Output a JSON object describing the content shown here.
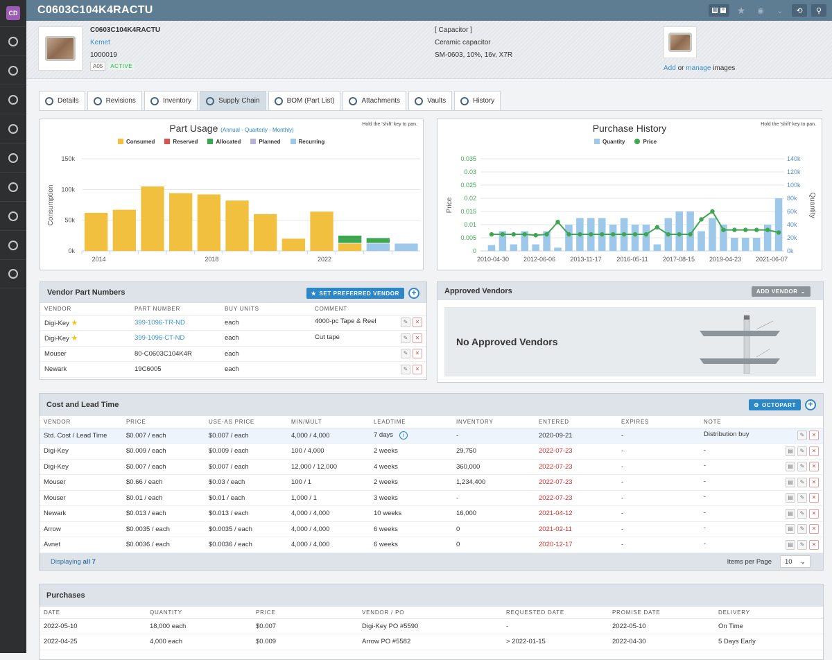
{
  "app": {
    "avatar": "CD",
    "title": "C0603C104K4RACTU"
  },
  "part": {
    "number": "C0603C104K4RACTU",
    "manufacturer": "Kemet",
    "id": "1000019",
    "rev": "A05",
    "status": "ACTIVE",
    "category": "[ Capacitor ]",
    "description": "Ceramic capacitor",
    "specs": "SM-0603, 10%, 16v, X7R",
    "images": {
      "add": "Add",
      "or": "or",
      "manage": "manage",
      "suffix": "images"
    }
  },
  "tabs": [
    {
      "label": "Details",
      "icon": "dashboard-icon"
    },
    {
      "label": "Revisions",
      "icon": "revisions-icon"
    },
    {
      "label": "Inventory",
      "icon": "inventory-icon"
    },
    {
      "label": "Supply Chain",
      "icon": "supply-chain-icon"
    },
    {
      "label": "BOM (Part List)",
      "icon": "bom-icon"
    },
    {
      "label": "Attachments",
      "icon": "paperclip-icon"
    },
    {
      "label": "Vaults",
      "icon": "shield-icon"
    },
    {
      "label": "History",
      "icon": "clock-icon"
    }
  ],
  "usage_chart": {
    "hint": "Hold the 'shift' key to pan.",
    "subtitle": "(Annual - Quarterly - Monthly)"
  },
  "purchase_chart": {
    "hint": "Hold the 'shift' key to pan."
  },
  "chart_data": [
    {
      "type": "bar",
      "title": "Part Usage",
      "ylabel": "Consumption",
      "ylim": [
        0,
        150000
      ],
      "yticks": [
        "0k",
        "50k",
        "100k",
        "150k"
      ],
      "xticks": [
        "2014",
        "2018",
        "2022"
      ],
      "legend": [
        {
          "name": "Consumed",
          "color": "#f0c03e"
        },
        {
          "name": "Reserved",
          "color": "#d9534f"
        },
        {
          "name": "Allocated",
          "color": "#3da650"
        },
        {
          "name": "Planned",
          "color": "#b8b3d8"
        },
        {
          "name": "Recurring",
          "color": "#9ec8ea"
        }
      ],
      "bars": [
        {
          "consumed": 62000
        },
        {
          "consumed": 67000
        },
        {
          "consumed": 105000
        },
        {
          "consumed": 94000
        },
        {
          "consumed": 92000
        },
        {
          "consumed": 82000
        },
        {
          "consumed": 60000
        },
        {
          "consumed": 20000
        },
        {
          "consumed": 64000
        },
        {
          "consumed": 12000,
          "allocated": 13000
        },
        {
          "allocated": 9000,
          "recurring": 12000
        },
        {
          "recurring": 12000
        }
      ]
    },
    {
      "type": "bar+line",
      "title": "Purchase History",
      "ylabel_left": "Price",
      "ylabel_right": "Quantity",
      "ylim_left": [
        0,
        0.035
      ],
      "ylim_right": [
        0,
        140000
      ],
      "yticks_left": [
        "0",
        "0.005",
        "0.01",
        "0.015",
        "0.02",
        "0.025",
        "0.03",
        "0.035"
      ],
      "yticks_right": [
        "0k",
        "20k",
        "40k",
        "60k",
        "80k",
        "100k",
        "120k",
        "140k"
      ],
      "xticks": [
        "2010-04-30",
        "2012-06-06",
        "2013-11-17",
        "2016-05-11",
        "2017-08-15",
        "2019-04-23",
        "2021-06-07"
      ],
      "legend": [
        {
          "name": "Quantity",
          "color": "#9ec8ea"
        },
        {
          "name": "Price",
          "color": "#3da650"
        }
      ],
      "quantity": [
        9000,
        30000,
        10000,
        30000,
        10000,
        30000,
        5000,
        40000,
        50000,
        50000,
        50000,
        40000,
        50000,
        40000,
        40000,
        10000,
        50000,
        60000,
        60000,
        30000,
        50000,
        40000,
        20000,
        20000,
        20000,
        40000,
        80000
      ],
      "price": [
        0.0063,
        0.0063,
        0.0063,
        0.0063,
        0.006,
        0.0063,
        0.011,
        0.0063,
        0.0063,
        0.0063,
        0.0063,
        0.0063,
        0.0063,
        0.0063,
        0.0063,
        0.009,
        0.0063,
        0.0063,
        0.0063,
        0.012,
        0.015,
        0.008,
        0.008,
        0.008,
        0.008,
        0.008,
        0.007
      ]
    }
  ],
  "vendor_parts": {
    "title": "Vendor Part Numbers",
    "button": "SET PREFERRED VENDOR",
    "columns": [
      "VENDOR",
      "PART NUMBER",
      "BUY UNITS",
      "COMMENT"
    ],
    "rows": [
      {
        "vendor": "Digi-Key",
        "preferred": true,
        "part": "399-1096-TR-ND",
        "link": true,
        "units": "each",
        "comment": "4000-pc Tape & Reel"
      },
      {
        "vendor": "Digi-Key",
        "preferred": true,
        "part": "399-1096-CT-ND",
        "link": true,
        "units": "each",
        "comment": "Cut tape"
      },
      {
        "vendor": "Mouser",
        "preferred": false,
        "part": "80-C0603C104K4R",
        "link": false,
        "units": "each",
        "comment": ""
      },
      {
        "vendor": "Newark",
        "preferred": false,
        "part": "19C6005",
        "link": false,
        "units": "each",
        "comment": ""
      }
    ]
  },
  "approved_vendors": {
    "title": "Approved Vendors",
    "button": "ADD VENDOR",
    "empty": "No Approved Vendors"
  },
  "cost": {
    "title": "Cost and Lead Time",
    "button": "OCTOPART",
    "columns": [
      "VENDOR",
      "PRICE",
      "USE-AS PRICE",
      "MIN/MULT",
      "LEADTIME",
      "INVENTORY",
      "ENTERED",
      "EXPIRES",
      "NOTE"
    ],
    "rows": [
      {
        "vendor": "Std. Cost / Lead Time",
        "price": "$0.007 / each",
        "useas": "$0.007 / each",
        "minmult": "4,000 / 4,000",
        "lead": "7 days",
        "inv": "-",
        "entered": "2020-09-21",
        "red": false,
        "expires": "-",
        "note": "Distribution buy",
        "std": true
      },
      {
        "vendor": "Digi-Key",
        "price": "$0.009 / each",
        "useas": "$0.009 / each",
        "minmult": "100 / 4,000",
        "lead": "2 weeks",
        "inv": "29,750",
        "entered": "2022-07-23",
        "red": true,
        "expires": "-",
        "note": "-"
      },
      {
        "vendor": "Digi-Key",
        "price": "$0.007 / each",
        "useas": "$0.007 / each",
        "minmult": "12,000 / 12,000",
        "lead": "4 weeks",
        "inv": "360,000",
        "entered": "2022-07-23",
        "red": true,
        "expires": "-",
        "note": "-"
      },
      {
        "vendor": "Mouser",
        "price": "$0.66 / each",
        "useas": "$0.03 / each",
        "minmult": "100 / 1",
        "lead": "2 weeks",
        "inv": "1,234,400",
        "entered": "2022-07-23",
        "red": true,
        "expires": "-",
        "note": "-"
      },
      {
        "vendor": "Mouser",
        "price": "$0.01 / each",
        "useas": "$0.01 / each",
        "minmult": "1,000 / 1",
        "lead": "3 weeks",
        "inv": "-",
        "entered": "2022-07-23",
        "red": true,
        "expires": "-",
        "note": "-"
      },
      {
        "vendor": "Newark",
        "price": "$0.013 / each",
        "useas": "$0.013 / each",
        "minmult": "4,000 / 4,000",
        "lead": "10 weeks",
        "inv": "16,000",
        "entered": "2021-04-12",
        "red": true,
        "expires": "-",
        "note": "-"
      },
      {
        "vendor": "Arrow",
        "price": "$0.0035 / each",
        "useas": "$0.0035 / each",
        "minmult": "4,000 / 4,000",
        "lead": "6 weeks",
        "inv": "0",
        "entered": "2021-02-11",
        "red": true,
        "expires": "-",
        "note": "-"
      },
      {
        "vendor": "Avnet",
        "price": "$0.0036 / each",
        "useas": "$0.0036 / each",
        "minmult": "4,000 / 4,000",
        "lead": "6 weeks",
        "inv": "0",
        "entered": "2020-12-17",
        "red": true,
        "expires": "-",
        "note": "-"
      }
    ],
    "footer": {
      "displaying": "Displaying",
      "all": "all 7",
      "per_page_label": "Items per Page",
      "per_page": "10"
    }
  },
  "purchases": {
    "title": "Purchases",
    "columns": [
      "DATE",
      "QUANTITY",
      "PRICE",
      "VENDOR / PO",
      "REQUESTED DATE",
      "PROMISE DATE",
      "DELIVERY"
    ],
    "rows": [
      [
        "2022-05-10",
        "18,000 each",
        "$0.007",
        "Digi-Key PO #5590",
        "-",
        "2022-05-10",
        "On Time"
      ],
      [
        "2022-04-25",
        "4,000 each",
        "$0.009",
        "Arrow PO #5582",
        "> 2022-01-15",
        "2022-04-30",
        "5 Days Early"
      ]
    ]
  }
}
